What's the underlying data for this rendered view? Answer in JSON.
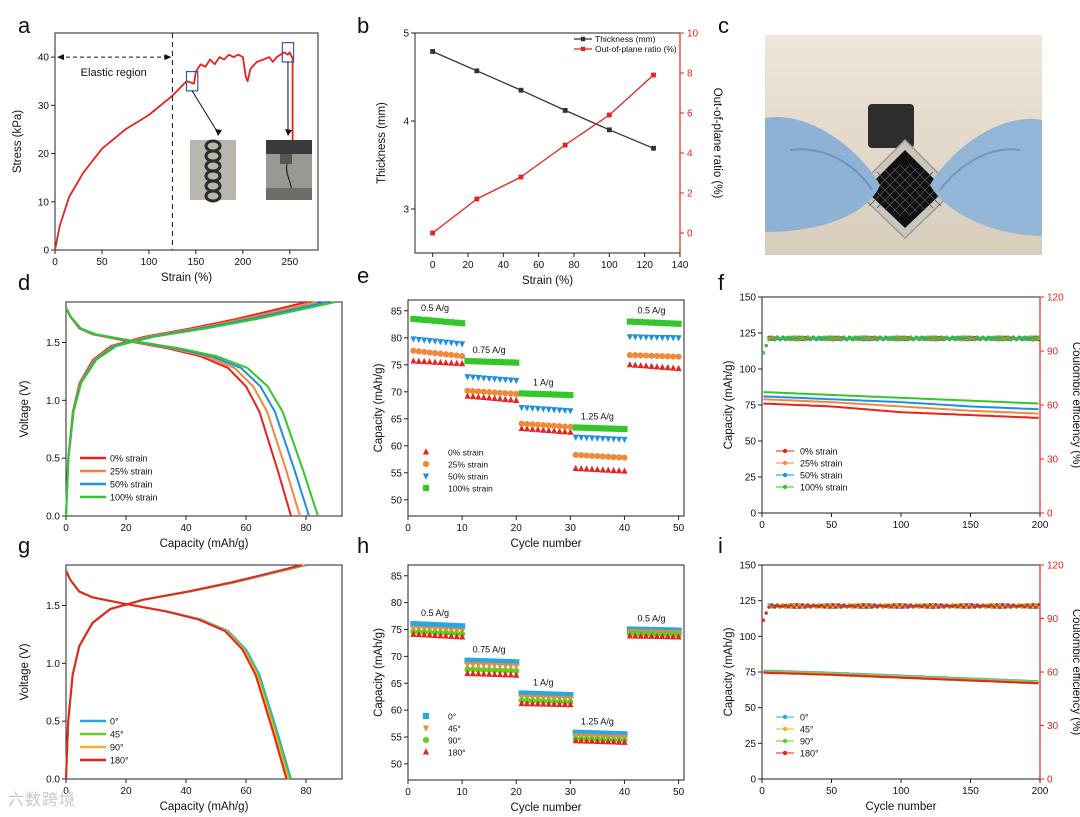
{
  "watermark": "六数跨境",
  "colors": {
    "red": "#e8221e",
    "black": "#333333",
    "orange": "#f0893a",
    "blue": "#1f8fe0",
    "green": "#35c62b",
    "sky": "#29a8e0",
    "yellow": "#f2b028",
    "lime": "#66cc22"
  },
  "chart_data": [
    {
      "panel": "a",
      "type": "line",
      "xlabel": "Strain (%)",
      "ylabel": "Stress (kPa)",
      "xlim": [
        0,
        280
      ],
      "ylim": [
        0,
        45
      ],
      "xticks": [
        0,
        50,
        100,
        150,
        200,
        250
      ],
      "yticks": [
        0,
        10,
        20,
        30,
        40
      ],
      "annotations": [
        "Elastic region"
      ],
      "elastic_limit_x": 125,
      "series": [
        {
          "color": "red",
          "x": [
            0,
            5,
            15,
            30,
            50,
            75,
            100,
            125,
            140,
            148,
            150,
            155,
            160,
            165,
            170,
            175,
            180,
            185,
            190,
            195,
            200,
            203,
            205,
            208,
            210,
            215,
            222,
            228,
            232,
            236,
            240,
            244,
            248,
            250,
            252,
            253,
            253
          ],
          "y": [
            0,
            5,
            11,
            16,
            21,
            25,
            28,
            32,
            35,
            34.5,
            37,
            38.5,
            38,
            39.5,
            38.5,
            40,
            39.5,
            40.5,
            40,
            40.5,
            40,
            36,
            35,
            37.5,
            38,
            39,
            39.5,
            40,
            39,
            40,
            40.5,
            41,
            40.5,
            41,
            40,
            40,
            17
          ]
        }
      ],
      "insets": [
        {
          "x": [
            140,
            152
          ],
          "y": [
            33,
            37
          ]
        },
        {
          "x": [
            242,
            254
          ],
          "y": [
            39,
            43
          ]
        }
      ]
    },
    {
      "panel": "b",
      "type": "line",
      "xlabel": "Strain (%)",
      "ylabel": "Thickness (mm)",
      "y2label": "Out-of-plane ratio (%)",
      "xlim": [
        -10,
        140
      ],
      "ylim": [
        2.5,
        5
      ],
      "y2lim": [
        -1,
        10
      ],
      "xticks": [
        0,
        20,
        40,
        60,
        80,
        100,
        120,
        140
      ],
      "yticks": [
        3,
        4,
        5
      ],
      "y2ticks": [
        0,
        2,
        4,
        6,
        8,
        10
      ],
      "legend": "top-right",
      "series": [
        {
          "name": "Thickness (mm)",
          "color": "black",
          "axis": "y",
          "x": [
            0,
            25,
            50,
            75,
            100,
            125
          ],
          "values": [
            4.79,
            4.57,
            4.35,
            4.12,
            3.9,
            3.69
          ]
        },
        {
          "name": "Out-of-plane ratio (%)",
          "color": "red",
          "axis": "y2",
          "x": [
            0,
            25,
            50,
            75,
            100,
            125
          ],
          "values": [
            0,
            1.7,
            2.8,
            4.4,
            5.9,
            7.9
          ]
        }
      ]
    },
    {
      "panel": "d",
      "type": "line",
      "xlabel": "Capacity (mAh/g)",
      "ylabel": "Voltage (V)",
      "xlim": [
        0,
        92
      ],
      "ylim": [
        0,
        1.85
      ],
      "xticks": [
        0,
        20,
        40,
        60,
        80
      ],
      "yticks": [
        0.0,
        0.5,
        1.0,
        1.5
      ],
      "legend": "bottom-left",
      "series": [
        {
          "name": "0% strain",
          "color": "red",
          "cap": 75
        },
        {
          "name": "25% strain",
          "color": "orange",
          "cap": 78
        },
        {
          "name": "50% strain",
          "color": "blue",
          "cap": 81
        },
        {
          "name": "100% strain",
          "color": "green",
          "cap": 84
        }
      ]
    },
    {
      "panel": "e",
      "type": "scatter",
      "xlabel": "Cycle number",
      "ylabel": "Capacity (mAh/g)",
      "xlim": [
        0,
        51
      ],
      "ylim": [
        47,
        87
      ],
      "xticks": [
        0,
        10,
        20,
        30,
        40,
        50
      ],
      "yticks": [
        50,
        55,
        60,
        65,
        70,
        75,
        80,
        85
      ],
      "rate_labels": [
        "0.5 A/g",
        "0.75 A/g",
        "1 A/g",
        "1.25 A/g",
        "0.5 A/g"
      ],
      "legend": "bottom-left",
      "series": [
        {
          "name": "0% strain",
          "color": "red",
          "marker": "triangle-up",
          "segments": [
            [
              75.7,
              75.2
            ],
            [
              69.2,
              68.4
            ],
            [
              63.2,
              62.5
            ],
            [
              55.8,
              55.3
            ],
            [
              75.0,
              74.3
            ]
          ]
        },
        {
          "name": "25% strain",
          "color": "orange",
          "marker": "circle",
          "segments": [
            [
              77.6,
              76.6
            ],
            [
              70.2,
              69.6
            ],
            [
              64.1,
              63.5
            ],
            [
              58.3,
              57.8
            ],
            [
              76.8,
              76.5
            ]
          ]
        },
        {
          "name": "50% strain",
          "color": "blue",
          "marker": "triangle-down",
          "segments": [
            [
              79.8,
              78.9
            ],
            [
              72.8,
              72.1
            ],
            [
              67.1,
              66.5
            ],
            [
              61.6,
              61.2
            ],
            [
              80.2,
              80.0
            ]
          ]
        },
        {
          "name": "100% strain",
          "color": "green",
          "marker": "square",
          "segments": [
            [
              83.5,
              82.7
            ],
            [
              75.7,
              75.4
            ],
            [
              69.7,
              69.4
            ],
            [
              63.4,
              63.1
            ],
            [
              83.0,
              82.6
            ]
          ]
        }
      ]
    },
    {
      "panel": "f",
      "type": "scatter",
      "xlabel": "",
      "ylabel": "Capacity (mAh/g)",
      "y2label": "Coulombic efficiency (%)",
      "xlim": [
        0,
        200
      ],
      "ylim": [
        0,
        150
      ],
      "y2lim": [
        0,
        120
      ],
      "xticks": [
        0,
        50,
        100,
        150,
        200
      ],
      "yticks": [
        0,
        25,
        50,
        75,
        100,
        125,
        150
      ],
      "y2ticks": [
        0,
        30,
        60,
        90,
        120
      ],
      "legend": "bottom-left",
      "capacity": [
        {
          "name": "0% strain",
          "color": "red",
          "x": [
            1,
            50,
            100,
            150,
            200
          ],
          "values": [
            76,
            74,
            70,
            68,
            66
          ]
        },
        {
          "name": "25% strain",
          "color": "orange",
          "x": [
            1,
            50,
            100,
            150,
            200
          ],
          "values": [
            79,
            77,
            74,
            71,
            69
          ]
        },
        {
          "name": "50% strain",
          "color": "blue",
          "x": [
            1,
            50,
            100,
            150,
            200
          ],
          "values": [
            81,
            79,
            77,
            74,
            72
          ]
        },
        {
          "name": "100% strain",
          "color": "green",
          "x": [
            1,
            50,
            100,
            150,
            200
          ],
          "values": [
            84,
            82,
            80,
            78,
            76
          ]
        }
      ],
      "efficiency_percent": 97
    },
    {
      "panel": "g",
      "type": "line",
      "xlabel": "Capacity (mAh/g)",
      "ylabel": "Voltage (V)",
      "xlim": [
        0,
        92
      ],
      "ylim": [
        0,
        1.85
      ],
      "xticks": [
        0,
        20,
        40,
        60,
        80
      ],
      "yticks": [
        0.0,
        0.5,
        1.0,
        1.5
      ],
      "legend": "bottom-left",
      "series": [
        {
          "name": "0°",
          "color": "sky",
          "cap": 75
        },
        {
          "name": "45°",
          "color": "lime",
          "cap": 74.5
        },
        {
          "name": "90°",
          "color": "yellow",
          "cap": 74
        },
        {
          "name": "180°",
          "color": "red",
          "cap": 73.5
        }
      ]
    },
    {
      "panel": "h",
      "type": "scatter",
      "xlabel": "Cycle number",
      "ylabel": "Capacity (mAh/g)",
      "xlim": [
        0,
        51
      ],
      "ylim": [
        47,
        87
      ],
      "xticks": [
        0,
        10,
        20,
        30,
        40,
        50
      ],
      "yticks": [
        50,
        55,
        60,
        65,
        70,
        75,
        80,
        85
      ],
      "rate_labels": [
        "0.5 A/g",
        "0.75 A/g",
        "1 A/g",
        "1.25 A/g",
        "0.5 A/g"
      ],
      "legend": "bottom-left",
      "series": [
        {
          "name": "0°",
          "color": "sky",
          "marker": "square",
          "segments": [
            [
              76.0,
              75.6
            ],
            [
              69.2,
              68.9
            ],
            [
              63.1,
              62.8
            ],
            [
              55.8,
              55.5
            ],
            [
              75.0,
              74.8
            ]
          ]
        },
        {
          "name": "45°",
          "color": "orange",
          "marker": "triangle-down",
          "segments": [
            [
              75.2,
              74.8
            ],
            [
              68.5,
              68.2
            ],
            [
              62.4,
              62.1
            ],
            [
              55.2,
              54.9
            ],
            [
              74.6,
              74.4
            ]
          ]
        },
        {
          "name": "90°",
          "color": "lime",
          "marker": "circle",
          "segments": [
            [
              74.6,
              74.2
            ],
            [
              67.6,
              67.3
            ],
            [
              61.8,
              61.5
            ],
            [
              54.7,
              54.4
            ],
            [
              74.2,
              74.0
            ]
          ]
        },
        {
          "name": "180°",
          "color": "red",
          "marker": "triangle-up",
          "segments": [
            [
              74.1,
              73.6
            ],
            [
              66.8,
              66.5
            ],
            [
              61.2,
              61.0
            ],
            [
              54.3,
              54.0
            ],
            [
              73.8,
              73.6
            ]
          ]
        }
      ]
    },
    {
      "panel": "i",
      "type": "scatter",
      "xlabel": "Cycle number",
      "ylabel": "Capacity (mAh/g)",
      "y2label": "Coulombic efficiency (%)",
      "xlim": [
        0,
        200
      ],
      "ylim": [
        0,
        150
      ],
      "y2lim": [
        0,
        120
      ],
      "xticks": [
        0,
        50,
        100,
        150,
        200
      ],
      "yticks": [
        0,
        25,
        50,
        75,
        100,
        125,
        150
      ],
      "y2ticks": [
        0,
        30,
        60,
        90,
        120
      ],
      "legend": "bottom-left",
      "capacity": [
        {
          "name": "0°",
          "color": "sky",
          "x": [
            1,
            50,
            100,
            150,
            200
          ],
          "values": [
            76,
            74.5,
            72.5,
            70.5,
            68.5
          ]
        },
        {
          "name": "45°",
          "color": "yellow",
          "x": [
            1,
            50,
            100,
            150,
            200
          ],
          "values": [
            75.5,
            74,
            72,
            70,
            68
          ]
        },
        {
          "name": "90°",
          "color": "lime",
          "x": [
            1,
            50,
            100,
            150,
            200
          ],
          "values": [
            75,
            73.5,
            71.5,
            69.5,
            67.5
          ]
        },
        {
          "name": "180°",
          "color": "red",
          "x": [
            1,
            50,
            100,
            150,
            200
          ],
          "values": [
            74.5,
            73,
            71,
            69,
            67
          ]
        }
      ],
      "efficiency_percent": 97
    }
  ],
  "panel_letters": [
    "a",
    "b",
    "c",
    "d",
    "e",
    "f",
    "g",
    "h",
    "i"
  ]
}
